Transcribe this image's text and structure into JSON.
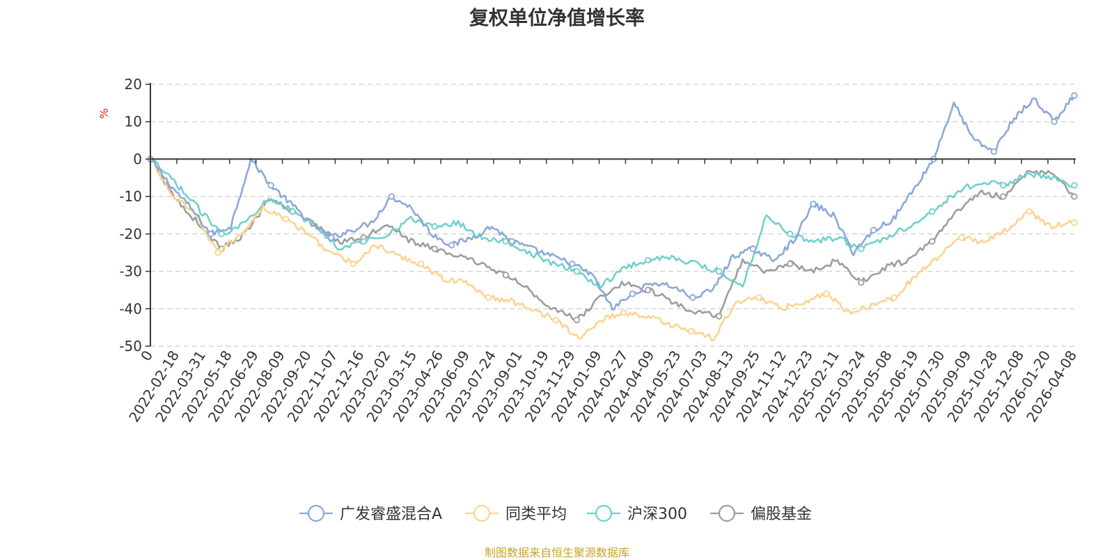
{
  "chart_data": {
    "type": "line",
    "title": "复权单位净值增长率",
    "ylabel": "%",
    "xlabel": "",
    "ylim": [
      -50,
      20
    ],
    "yticks": [
      20,
      10,
      0,
      -10,
      -20,
      -30,
      -40,
      -50
    ],
    "x_tick_labels": [
      "0",
      "2022-02-18",
      "2022-03-31",
      "2022-05-18",
      "2022-06-29",
      "2022-08-09",
      "2022-09-20",
      "2022-11-07",
      "2022-12-16",
      "2023-02-02",
      "2023-03-15",
      "2023-04-26",
      "2023-06-09",
      "2023-07-24",
      "2023-09-01",
      "2023-10-19",
      "2023-11-29",
      "2024-01-09",
      "2024-02-27",
      "2024-04-09",
      "2024-05-23",
      "2024-07-03",
      "2024-08-13",
      "2024-09-25",
      "2024-11-12",
      "2024-12-23",
      "2025-02-11",
      "2025-03-24",
      "2025-05-08",
      "2025-06-19",
      "2025-07-30",
      "2025-09-09",
      "2025-10-28",
      "2025-12-08",
      "2026-01-20",
      "2026-04-08"
    ],
    "grid": "horizontal-dashed",
    "legend_position": "bottom-center",
    "series": [
      {
        "name": "广发睿盛混合A",
        "color": "#8aa8d9",
        "values": [
          0,
          -7,
          -13,
          -20,
          -18,
          0,
          -7,
          -12,
          -17,
          -21,
          -19,
          -17,
          -10,
          -13,
          -20,
          -23,
          -21,
          -18,
          -22,
          -24,
          -26,
          -28,
          -31,
          -40,
          -36,
          -33,
          -34,
          -37,
          -35,
          -26,
          -24,
          -27,
          -22,
          -12,
          -15,
          -25,
          -19,
          -16,
          -8,
          0,
          15,
          5,
          2,
          11,
          16,
          10,
          17
        ]
      },
      {
        "name": "同类平均",
        "color": "#fcd38f",
        "values": [
          0,
          -10,
          -15,
          -25,
          -20,
          -13,
          -16,
          -20,
          -25,
          -28,
          -23,
          -26,
          -28,
          -32,
          -33,
          -37,
          -38,
          -40,
          -43,
          -48,
          -43,
          -41,
          -42,
          -44,
          -46,
          -48,
          -38,
          -37,
          -40,
          -38,
          -36,
          -41,
          -39,
          -37,
          -31,
          -26,
          -21,
          -22,
          -19,
          -14,
          -18,
          -17
        ]
      },
      {
        "name": "沪深300",
        "color": "#70d1cc",
        "values": [
          0,
          -6,
          -13,
          -20,
          -17,
          -10,
          -14,
          -18,
          -24,
          -22,
          -20,
          -16,
          -18,
          -17,
          -21,
          -22,
          -25,
          -28,
          -30,
          -34,
          -29,
          -27,
          -26,
          -28,
          -30,
          -34,
          -15,
          -20,
          -22,
          -21,
          -24,
          -21,
          -18,
          -14,
          -9,
          -6,
          -7,
          -4,
          -5,
          -7
        ]
      },
      {
        "name": "偏股基金",
        "color": "#9d9d9d",
        "values": [
          0,
          -10,
          -17,
          -24,
          -20,
          -11,
          -14,
          -18,
          -22,
          -21,
          -17,
          -22,
          -24,
          -26,
          -28,
          -31,
          -35,
          -40,
          -43,
          -37,
          -33,
          -35,
          -38,
          -41,
          -42,
          -27,
          -30,
          -28,
          -30,
          -27,
          -33,
          -29,
          -27,
          -22,
          -14,
          -9,
          -10,
          -4,
          -3,
          -10
        ]
      }
    ]
  },
  "legend": {
    "items": [
      "广发睿盛混合A",
      "同类平均",
      "沪深300",
      "偏股基金"
    ]
  },
  "source_note": "制图数据来自恒生聚源数据库"
}
